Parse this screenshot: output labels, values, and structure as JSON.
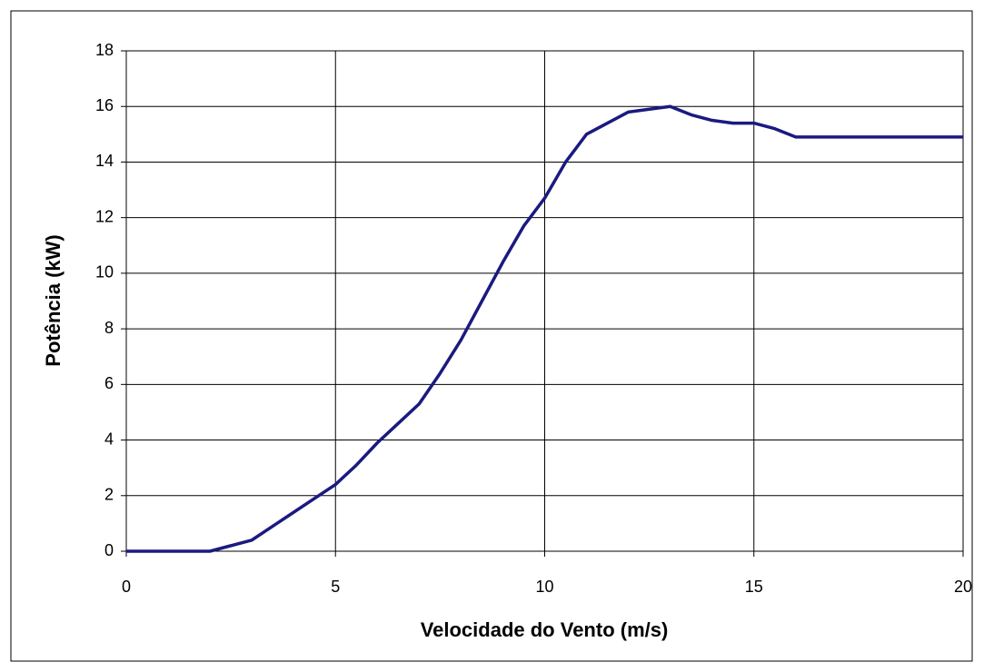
{
  "chart_data": {
    "type": "line",
    "xlabel": "Velocidade do Vento (m/s)",
    "ylabel": "Potência (kW)",
    "x": [
      0,
      1,
      2,
      2.5,
      3,
      3.5,
      4,
      4.5,
      5,
      5.5,
      6,
      6.5,
      7,
      7.5,
      8,
      8.5,
      9,
      9.5,
      10,
      10.5,
      11,
      11.5,
      12,
      12.5,
      13,
      13.5,
      14,
      14.5,
      15,
      15.5,
      16,
      17,
      18,
      19,
      20
    ],
    "values": [
      0,
      0,
      0,
      0.2,
      0.4,
      0.9,
      1.4,
      1.9,
      2.4,
      3.1,
      3.9,
      4.6,
      5.3,
      6.4,
      7.6,
      9.0,
      10.4,
      11.7,
      12.7,
      14.0,
      15.0,
      15.4,
      15.8,
      15.9,
      16.0,
      15.7,
      15.5,
      15.4,
      15.4,
      15.2,
      14.9,
      14.9,
      14.9,
      14.9,
      14.9
    ],
    "color": "#1a1a80",
    "xlim": [
      0,
      20
    ],
    "xticks": [
      0,
      5,
      10,
      15,
      20
    ],
    "ylim": [
      0,
      18
    ],
    "yticks": [
      0,
      2,
      4,
      6,
      8,
      10,
      12,
      14,
      16,
      18
    ],
    "grid": true
  }
}
